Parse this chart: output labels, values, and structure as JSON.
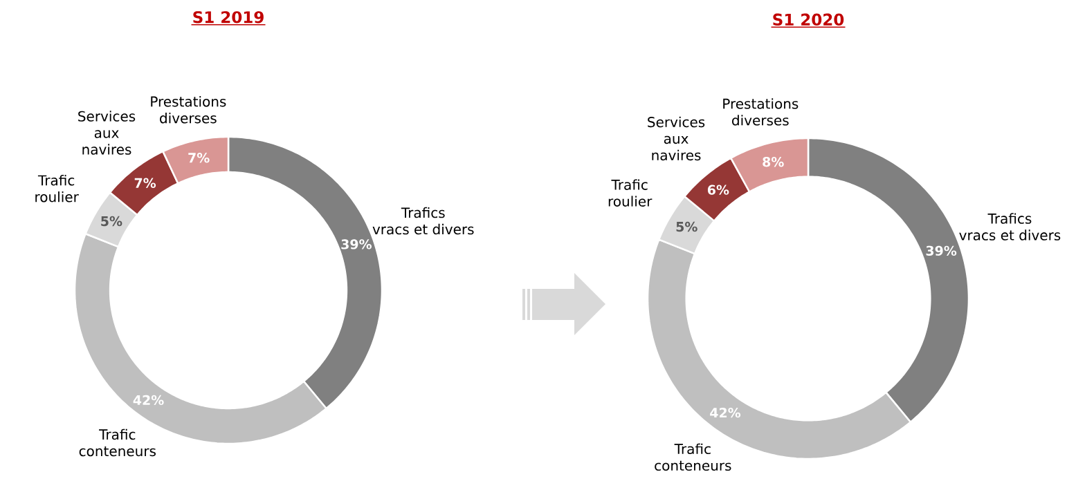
{
  "chart_data": [
    {
      "type": "donut",
      "title": "S1 2019",
      "categories": [
        "Trafics vracs et divers",
        "Trafic conteneurs",
        "Trafic roulier",
        "Services aux navires",
        "Prestations diverses"
      ],
      "values": [
        39,
        42,
        5,
        7,
        7
      ],
      "colors": [
        "#808080",
        "#bfbfbf",
        "#d9d9d9",
        "#953735",
        "#d99694"
      ],
      "value_labels": [
        "39%",
        "42%",
        "5%",
        "7%",
        "7%"
      ]
    },
    {
      "type": "donut",
      "title": "S1 2020",
      "categories": [
        "Trafics vracs et divers",
        "Trafic conteneurs",
        "Trafic roulier",
        "Services aux navires",
        "Prestations diverses"
      ],
      "values": [
        39,
        42,
        5,
        6,
        8
      ],
      "colors": [
        "#808080",
        "#bfbfbf",
        "#d9d9d9",
        "#953735",
        "#d99694"
      ],
      "value_labels": [
        "39%",
        "42%",
        "5%",
        "6%",
        "8%"
      ]
    }
  ]
}
